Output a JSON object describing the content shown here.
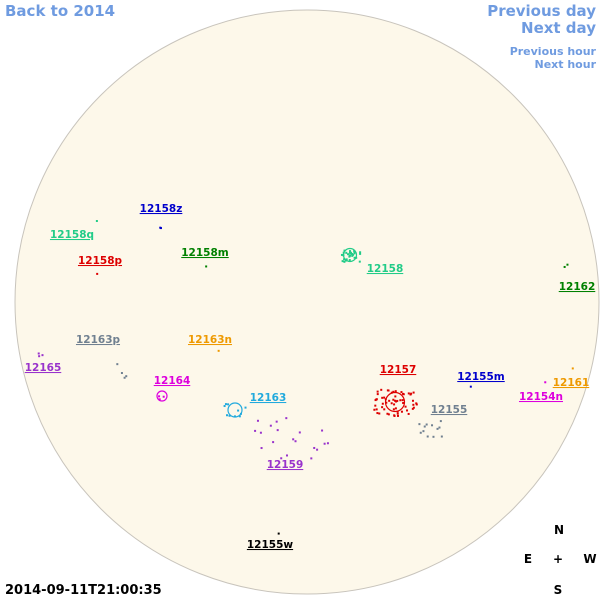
{
  "nav": {
    "back": "Back to 2014",
    "previous_day": "Previous day",
    "next_day": "Next day",
    "previous_hour": "Previous hour",
    "next_hour": "Next hour"
  },
  "timestamp": "2014-09-11T21:00:35",
  "compass": {
    "north": "N",
    "east": "E",
    "center": "+",
    "west": "W",
    "south": "S"
  },
  "regions": [
    {
      "label": "12158z",
      "color": "#0000cc"
    },
    {
      "label": "12158q",
      "color": "#22cc88"
    },
    {
      "label": "12158m",
      "color": "#008000"
    },
    {
      "label": "12158p",
      "color": "#dd0000"
    },
    {
      "label": "12158",
      "color": "#22cc88"
    },
    {
      "label": "12162",
      "color": "#008000"
    },
    {
      "label": "12163p",
      "color": "#708090"
    },
    {
      "label": "12163n",
      "color": "#ee9900"
    },
    {
      "label": "12165",
      "color": "#9933cc"
    },
    {
      "label": "12164",
      "color": "#dd00dd"
    },
    {
      "label": "12163",
      "color": "#22aadd"
    },
    {
      "label": "12157",
      "color": "#dd0000"
    },
    {
      "label": "12155m",
      "color": "#0000cc"
    },
    {
      "label": "12161",
      "color": "#ee9900"
    },
    {
      "label": "12154n",
      "color": "#dd00dd"
    },
    {
      "label": "12155",
      "color": "#708090"
    },
    {
      "label": "12159",
      "color": "#9933cc"
    },
    {
      "label": "12155w",
      "color": "#000000"
    }
  ]
}
